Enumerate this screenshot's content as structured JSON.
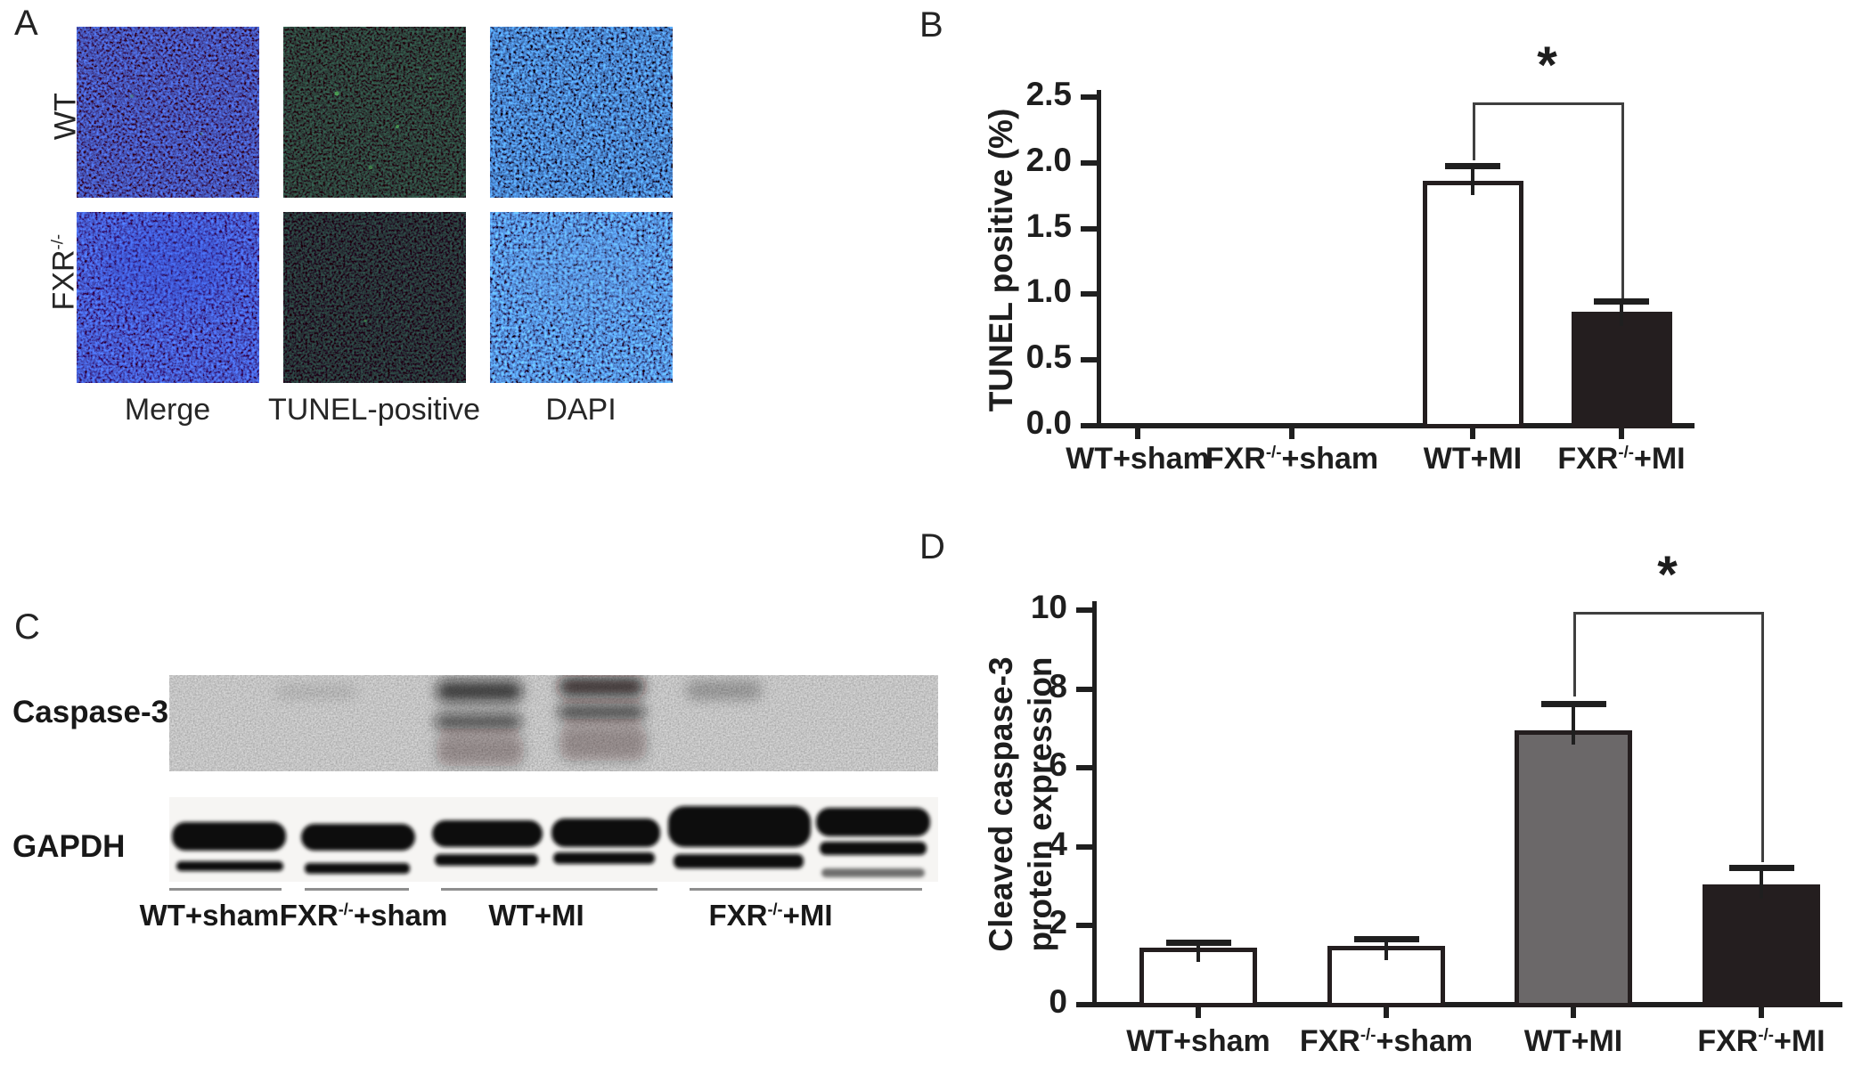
{
  "figure": {
    "panels": {
      "a": {
        "label": "A",
        "row_labels": [
          {
            "base": "WT",
            "sup": ""
          },
          {
            "base": "FXR",
            "sup": "-/-"
          }
        ],
        "col_labels": [
          "Merge",
          "TUNEL-positive",
          "DAPI"
        ]
      },
      "b": {
        "label": "B"
      },
      "c": {
        "label": "C",
        "blots": [
          {
            "name": "Caspase-3"
          },
          {
            "name": "GAPDH"
          }
        ],
        "lane_labels": [
          {
            "base": "WT+sham",
            "sup": "",
            "rest": ""
          },
          {
            "base": "FXR",
            "sup": "-/-",
            "rest": "+sham"
          },
          {
            "base": "WT+MI",
            "sup": "",
            "rest": ""
          },
          {
            "base": "FXR",
            "sup": "-/-",
            "rest": "+MI"
          }
        ]
      },
      "d": {
        "label": "D"
      }
    }
  },
  "chart_data": [
    {
      "id": "tunel",
      "type": "bar",
      "title": "",
      "xlabel": "",
      "ylabel": "TUNEL positive (%)",
      "categories": [
        {
          "base": "WT+sham",
          "sup": "",
          "rest": ""
        },
        {
          "base": "FXR",
          "sup": "-/-",
          "rest": "+sham"
        },
        {
          "base": "WT+MI",
          "sup": "",
          "rest": ""
        },
        {
          "base": "FXR",
          "sup": "-/-",
          "rest": "+MI"
        }
      ],
      "values": [
        0,
        0,
        1.86,
        0.87
      ],
      "errors": [
        0,
        0,
        0.12,
        0.08
      ],
      "bar_colors": [
        "#ffffff",
        "#ffffff",
        "#ffffff",
        "#241e1f"
      ],
      "bar_border_color": "#241e1f",
      "ylim": [
        0,
        2.5
      ],
      "yticks": [
        0,
        0.5,
        1,
        1.5,
        2,
        2.5
      ],
      "ytick_labels": [
        "0.0",
        "0.5",
        "1.0",
        "1.5",
        "2.0",
        "2.5"
      ],
      "grid": false,
      "legend": null,
      "significance": {
        "label": "*",
        "from_index": 2,
        "to_index": 3,
        "bracket_y": 2.46,
        "left_drop_to": 2.02,
        "right_drop_to": 0.97
      }
    },
    {
      "id": "cleaved-caspase3",
      "type": "bar",
      "title": "",
      "xlabel": "",
      "ylabel": "Cleaved caspase-3 protein expression",
      "ylabel_lines": [
        "Cleaved caspase-3",
        "protein expression"
      ],
      "categories": [
        {
          "base": "WT+sham",
          "sup": "",
          "rest": ""
        },
        {
          "base": "FXR",
          "sup": "-/-",
          "rest": "+sham"
        },
        {
          "base": "WT+MI",
          "sup": "",
          "rest": ""
        },
        {
          "base": "FXR",
          "sup": "-/-",
          "rest": "+MI"
        }
      ],
      "values": [
        1.45,
        1.5,
        6.95,
        3.05
      ],
      "errors": [
        0.13,
        0.18,
        0.68,
        0.42
      ],
      "bar_colors": [
        "#ffffff",
        "#ffffff",
        "#6b6869",
        "#241e1f"
      ],
      "bar_border_color": "#241e1f",
      "ylim": [
        0,
        10
      ],
      "yticks": [
        0,
        2,
        4,
        6,
        8,
        10
      ],
      "ytick_labels": [
        "0",
        "2",
        "4",
        "6",
        "8",
        "10"
      ],
      "grid": false,
      "legend": null,
      "significance": {
        "label": "*",
        "from_index": 2,
        "to_index": 3,
        "bracket_y": 9.95,
        "left_drop_to": 7.8,
        "right_drop_to": 3.62
      }
    }
  ]
}
